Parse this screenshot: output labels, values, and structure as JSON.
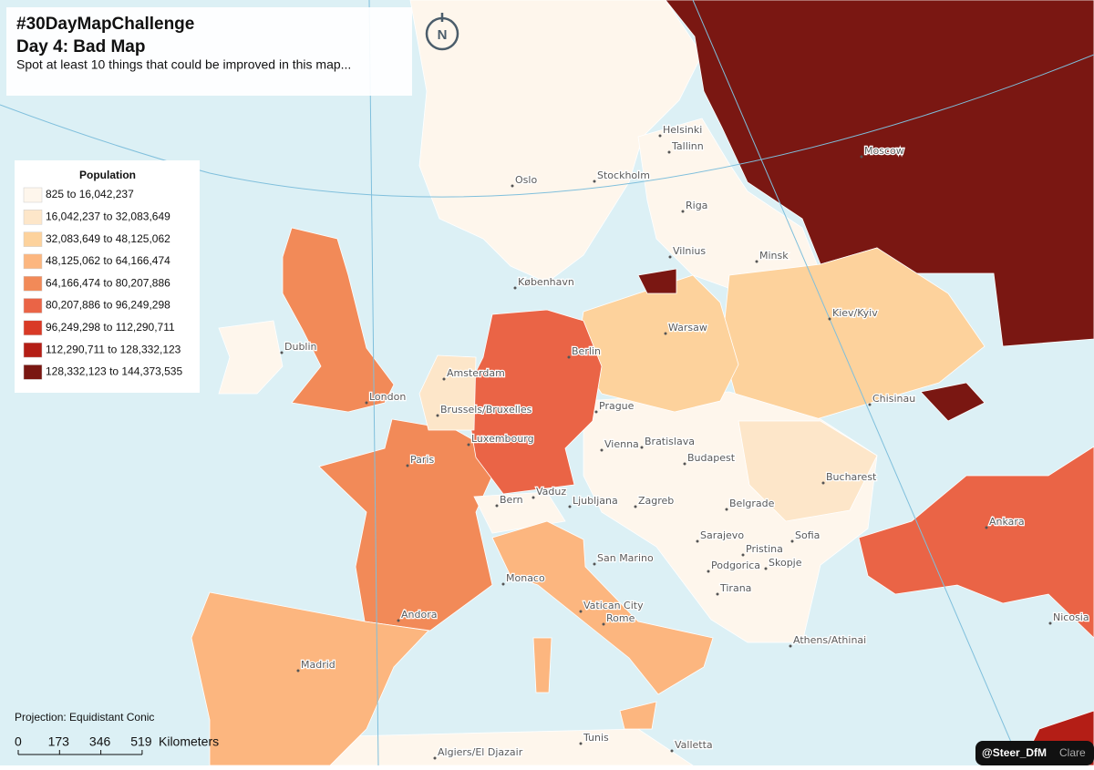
{
  "header": {
    "title": "#30DayMapChallenge",
    "subtitle": "Day 4: Bad Map",
    "description": "Spot at least 10 things that could be improved in this map..."
  },
  "north_arrow": "N",
  "legend": {
    "title": "Population",
    "items": [
      {
        "label": "825 to 16,042,237",
        "color": "#fef6ec"
      },
      {
        "label": "16,042,237 to 32,083,649",
        "color": "#fde6c9"
      },
      {
        "label": "32,083,649 to 48,125,062",
        "color": "#fdd29c"
      },
      {
        "label": "48,125,062 to 64,166,474",
        "color": "#fcb67f"
      },
      {
        "label": "64,166,474 to 80,207,886",
        "color": "#f28a58"
      },
      {
        "label": "80,207,886 to 96,249,298",
        "color": "#ea6446"
      },
      {
        "label": "96,249,298 to 112,290,711",
        "color": "#d93a26"
      },
      {
        "label": "112,290,711 to 128,332,123",
        "color": "#b41e16"
      },
      {
        "label": "128,332,123 to 144,373,535",
        "color": "#7a1712"
      }
    ]
  },
  "cities": [
    "Helsinki",
    "Tallinn",
    "Oslo",
    "Stockholm",
    "Riga",
    "Vilnius",
    "Minsk",
    "København",
    "Moscow",
    "Dublin",
    "Amsterdam",
    "Berlin",
    "Warsaw",
    "Kiev/Kyiv",
    "London",
    "Brussels/Bruxelles",
    "Luxembourg",
    "Prague",
    "Chisinau",
    "Vienna",
    "Bratislava",
    "Budapest",
    "Paris",
    "Bucharest",
    "Bern",
    "Vaduz",
    "Ljubljana",
    "Zagreb",
    "Belgrade",
    "Ankara",
    "Sofia",
    "Sarajevo",
    "Pristina",
    "Skopje",
    "San Marino",
    "Podgorica",
    "Monaco",
    "Tirana",
    "Vatican City",
    "Rome",
    "Andora",
    "Nicosia",
    "Athens/Athinai",
    "Madrid",
    "Tunis",
    "Valletta",
    "Algiers/El Djazair"
  ],
  "projection": "Projection: Equidistant Conic",
  "scale_bar": {
    "ticks": [
      0,
      173,
      346,
      519
    ],
    "unit": "Kilometers"
  },
  "credit": {
    "handle": "@Steer_DfM",
    "name": "Clare"
  }
}
